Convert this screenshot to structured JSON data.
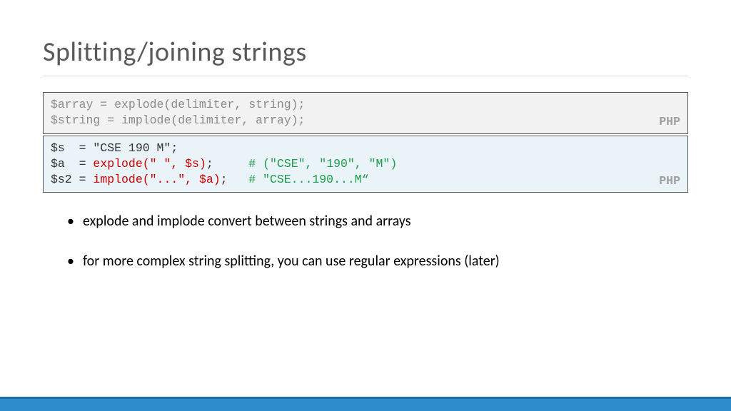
{
  "colors": {
    "title": "#595959",
    "rule": "#d9d9d9",
    "box_gray_bg": "#f2f2f2",
    "box_blue_bg": "#eaf3f7",
    "box_border": "#555555",
    "code_gray": "#8a8a8a",
    "code_black": "#333333",
    "code_red": "#cc0000",
    "code_green": "#1a9e4b",
    "lang_label": "#a0a0a0",
    "footer_bar": "#2e8bcc",
    "footer_bar_top": "#1f6ba3"
  },
  "fonts": {
    "title_size_pt": 28,
    "code_family": "Courier New",
    "code_size_pt": 12,
    "bullet_size_pt": 15
  },
  "title": "Splitting/joining strings",
  "syntax_box": {
    "lang": "PHP",
    "lines": [
      [
        {
          "cls": "c-gray",
          "t": "$array = explode(delimiter, string);"
        }
      ],
      [
        {
          "cls": "c-gray",
          "t": "$string = implode(delimiter, array);"
        }
      ]
    ]
  },
  "example_box": {
    "lang": "PHP",
    "lines": [
      [
        {
          "cls": "c-black",
          "t": "$s  = \"CSE 190 M\";"
        }
      ],
      [
        {
          "cls": "c-black",
          "t": "$a  = "
        },
        {
          "cls": "c-red",
          "t": "explode(\" \", $s)"
        },
        {
          "cls": "c-black",
          "t": ";     "
        },
        {
          "cls": "c-green",
          "t": "# (\"CSE\", \"190\", \"M\")"
        }
      ],
      [
        {
          "cls": "c-black",
          "t": "$s2 = "
        },
        {
          "cls": "c-red",
          "t": "implode(\"...\", $a)"
        },
        {
          "cls": "c-black",
          "t": ";   "
        },
        {
          "cls": "c-green",
          "t": "# \"CSE...190...M“"
        }
      ]
    ]
  },
  "bullets": [
    "explode and implode convert between strings and arrays",
    "for more complex string splitting, you can use regular expressions (later)"
  ]
}
